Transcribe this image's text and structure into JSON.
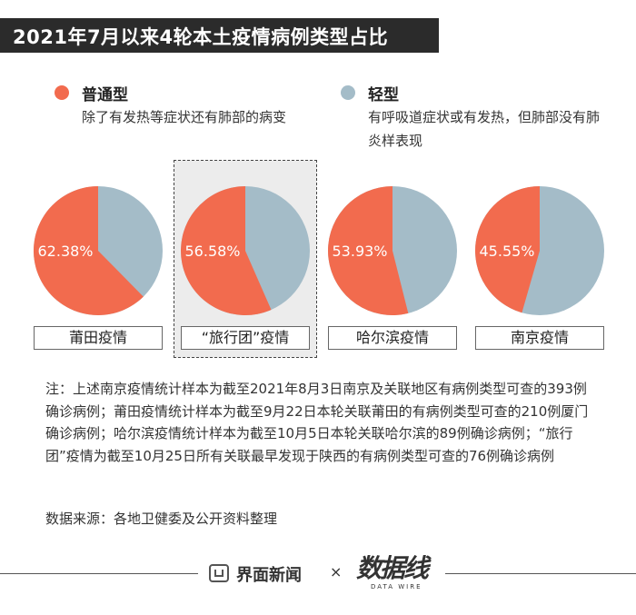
{
  "title": "2021年7月以来4轮本土疫情病例类型占比",
  "legend": {
    "common": {
      "label": "普通型",
      "desc": "除了有发热等症状还有肺部的病变",
      "color": "#f26b4e"
    },
    "mild": {
      "label": "轻型",
      "desc": "有呼吸道症状或有发热，但肺部没有肺炎样表现",
      "color": "#a4bcc8"
    }
  },
  "chart_data": {
    "type": "pie",
    "series_names": [
      "普通型",
      "轻型"
    ],
    "pies": [
      {
        "name": "莆田疫情",
        "common_pct": 62.38,
        "mild_pct": 37.62,
        "label": "62.38%",
        "highlighted": false
      },
      {
        "name": "“旅行团”疫情",
        "common_pct": 56.58,
        "mild_pct": 43.42,
        "label": "56.58%",
        "highlighted": true
      },
      {
        "name": "哈尔滨疫情",
        "common_pct": 53.93,
        "mild_pct": 46.07,
        "label": "53.93%",
        "highlighted": false
      },
      {
        "name": "南京疫情",
        "common_pct": 45.55,
        "mild_pct": 54.45,
        "label": "45.55%",
        "highlighted": false
      }
    ]
  },
  "note": "注：上述南京疫情统计样本为截至2021年8月3日南京及关联地区有病例类型可查的393例确诊病例；莆田疫情统计样本为截至9月22日本轮关联莆田的有病例类型可查的210例厦门确诊病例；哈尔滨疫情统计样本为截至10月5日本轮关联哈尔滨的89例确诊病例；“旅行团”疫情为截至10月25日所有关联最早发现于陕西的有病例类型可查的76例确诊病例",
  "source": "数据来源：各地卫健委及公开资料整理",
  "footer": {
    "brand": "界面新闻",
    "separator": "×",
    "partner": "数据线",
    "partner_sub": "DATA WIRE"
  }
}
